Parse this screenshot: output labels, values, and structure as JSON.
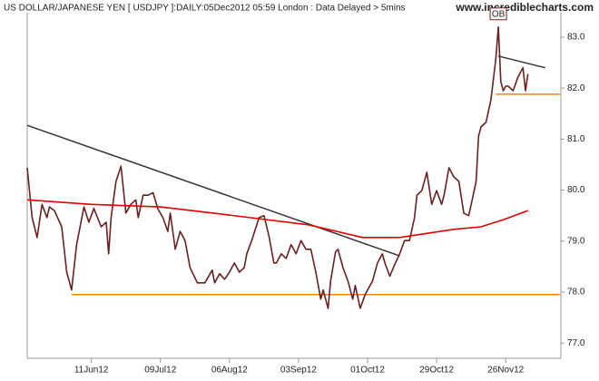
{
  "chart_data": {
    "type": "line",
    "title": "US DOLLAR/JAPANESE YEN [ USDJPY ]:DAILY:05Dec2012 05:59 London : Data Delayed > 5mins",
    "watermark": "www.incrediblecharts.com",
    "xlim": [
      "2012-05-16",
      "2012-12-18"
    ],
    "xticks": [
      {
        "value": "2012-06-11",
        "label": "11Jun12"
      },
      {
        "value": "2012-07-09",
        "label": "09Jul12"
      },
      {
        "value": "2012-08-06",
        "label": "06Aug12"
      },
      {
        "value": "2012-09-03",
        "label": "03Sep12"
      },
      {
        "value": "2012-10-01",
        "label": "01Oct12"
      },
      {
        "value": "2012-10-29",
        "label": "29Oct12"
      },
      {
        "value": "2012-11-26",
        "label": "26Nov12"
      }
    ],
    "ylim": [
      76.7,
      83.73
    ],
    "yticks": [
      {
        "value": 77,
        "label": "77.0"
      },
      {
        "value": 78,
        "label": "78.0"
      },
      {
        "value": 79,
        "label": "79.0"
      },
      {
        "value": 80,
        "label": "80.0"
      },
      {
        "value": 81,
        "label": "81.0"
      },
      {
        "value": 82,
        "label": "82.0"
      },
      {
        "value": 83,
        "label": "83.0"
      }
    ],
    "series": [
      {
        "color": "#6b1f1f",
        "x": [
          "2012-05-16",
          "2012-05-18",
          "2012-05-20",
          "2012-05-22",
          "2012-05-24",
          "2012-05-25",
          "2012-05-27",
          "2012-05-30",
          "2012-06-01",
          "2012-06-03",
          "2012-06-05",
          "2012-06-08",
          "2012-06-10",
          "2012-06-12",
          "2012-06-15",
          "2012-06-17",
          "2012-06-18",
          "2012-06-19",
          "2012-06-21",
          "2012-06-23",
          "2012-06-25",
          "2012-06-27",
          "2012-06-29",
          "2012-06-30",
          "2012-07-02",
          "2012-07-04",
          "2012-07-06",
          "2012-07-08",
          "2012-07-10",
          "2012-07-12",
          "2012-07-13",
          "2012-07-15",
          "2012-07-17",
          "2012-07-19",
          "2012-07-21",
          "2012-07-24",
          "2012-07-27",
          "2012-07-30",
          "2012-07-31",
          "2012-08-02",
          "2012-08-04",
          "2012-08-06",
          "2012-08-08",
          "2012-08-10",
          "2012-08-12",
          "2012-08-13",
          "2012-08-15",
          "2012-08-18",
          "2012-08-20",
          "2012-08-22",
          "2012-08-24",
          "2012-08-25",
          "2012-08-27",
          "2012-08-29",
          "2012-08-31",
          "2012-09-02",
          "2012-09-04",
          "2012-09-06",
          "2012-09-08",
          "2012-09-10",
          "2012-09-12",
          "2012-09-13",
          "2012-09-15",
          "2012-09-16",
          "2012-09-18",
          "2012-09-19",
          "2012-09-21",
          "2012-09-23",
          "2012-09-25",
          "2012-09-26",
          "2012-09-28",
          "2012-09-30",
          "2012-10-03",
          "2012-10-05",
          "2012-10-07",
          "2012-10-08",
          "2012-10-10",
          "2012-10-12",
          "2012-10-14",
          "2012-10-16",
          "2012-10-18",
          "2012-10-20",
          "2012-10-21",
          "2012-10-23",
          "2012-10-25",
          "2012-10-27",
          "2012-10-29",
          "2012-10-31",
          "2012-11-01",
          "2012-11-03",
          "2012-11-05",
          "2012-11-07",
          "2012-11-09",
          "2012-11-11",
          "2012-11-12",
          "2012-11-14",
          "2012-11-15",
          "2012-11-16",
          "2012-11-18",
          "2012-11-20",
          "2012-11-22",
          "2012-11-23",
          "2012-11-24",
          "2012-11-25",
          "2012-11-26",
          "2012-11-27",
          "2012-11-29",
          "2012-12-01",
          "2012-12-03",
          "2012-12-04",
          "2012-12-05"
        ],
        "values": [
          80.44,
          79.46,
          79.07,
          79.72,
          79.46,
          79.67,
          79.6,
          79.28,
          78.39,
          78.04,
          78.93,
          79.67,
          79.37,
          79.64,
          79.28,
          79.37,
          78.75,
          79.46,
          80.17,
          80.47,
          79.55,
          79.72,
          79.81,
          79.46,
          79.9,
          79.9,
          79.95,
          79.63,
          79.46,
          79.19,
          79.55,
          78.84,
          79.19,
          79.01,
          78.48,
          78.18,
          78.18,
          78.43,
          78.18,
          78.36,
          78.25,
          78.39,
          78.57,
          78.39,
          78.48,
          78.75,
          79.01,
          79.46,
          79.5,
          79.1,
          78.57,
          78.57,
          78.75,
          78.66,
          78.93,
          78.75,
          79.01,
          78.84,
          78.84,
          78.39,
          77.86,
          78.04,
          77.68,
          78.22,
          78.79,
          78.84,
          78.48,
          78.22,
          77.86,
          78.13,
          77.68,
          77.95,
          78.22,
          78.57,
          78.75,
          78.57,
          78.31,
          78.54,
          78.75,
          79.01,
          79.01,
          79.46,
          79.9,
          79.99,
          80.35,
          79.72,
          79.99,
          79.72,
          79.9,
          80.44,
          80.26,
          80.17,
          79.55,
          79.5,
          79.72,
          80.17,
          81.06,
          81.24,
          81.33,
          81.77,
          82.57,
          83.2,
          82.13,
          81.95,
          82.04,
          82.04,
          81.95,
          82.22,
          82.4,
          81.95,
          82.28
        ]
      },
      {
        "color": "#e00000",
        "x": [
          "2012-05-16",
          "2012-06-11",
          "2012-07-09",
          "2012-08-06",
          "2012-09-07",
          "2012-09-29",
          "2012-10-14",
          "2012-11-05",
          "2012-11-16",
          "2012-11-25",
          "2012-12-05"
        ],
        "values": [
          79.81,
          79.72,
          79.67,
          79.51,
          79.32,
          79.07,
          79.07,
          79.23,
          79.28,
          79.42,
          79.6
        ]
      }
    ],
    "lines": [
      {
        "color": "#333333",
        "x": [
          "2012-05-16",
          "2012-10-14"
        ],
        "values": [
          81.27,
          78.71
        ]
      },
      {
        "color": "#333333",
        "x": [
          "2012-11-23",
          "2012-12-12"
        ],
        "values": [
          82.63,
          82.4
        ]
      },
      {
        "color": "#ff8000",
        "x": [
          "2012-06-03",
          "2012-12-18"
        ],
        "values": [
          77.95,
          77.95
        ]
      },
      {
        "color": "#ff8000",
        "x": [
          "2012-11-22",
          "2012-12-18"
        ],
        "values": [
          81.88,
          81.88
        ]
      }
    ],
    "annotations": [
      {
        "text": "OB",
        "x": "2012-11-23"
      }
    ]
  }
}
